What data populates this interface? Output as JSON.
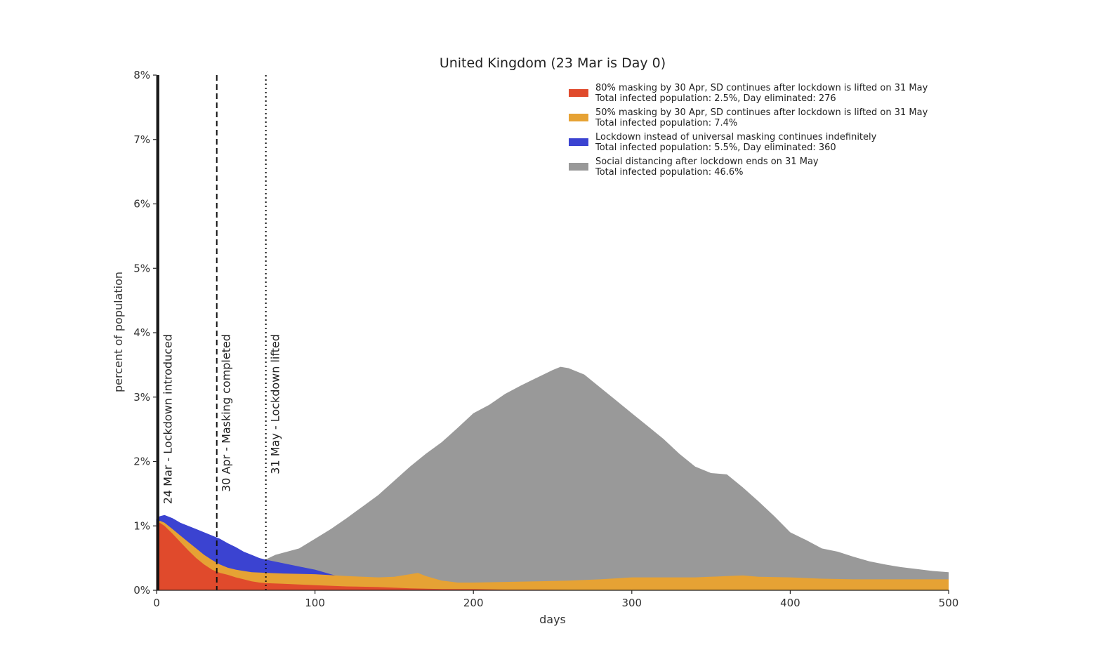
{
  "chart_data": {
    "type": "area",
    "title": "United Kingdom (23 Mar is Day 0)",
    "xlabel": "days",
    "ylabel": "percent of population",
    "xlim": [
      0,
      500
    ],
    "ylim": [
      0,
      8
    ],
    "x_ticks": [
      0,
      100,
      200,
      300,
      400,
      500
    ],
    "x_tick_labels": [
      "0",
      "100",
      "200",
      "300",
      "400",
      "500"
    ],
    "y_ticks": [
      0,
      1,
      2,
      3,
      4,
      5,
      6,
      7,
      8
    ],
    "y_tick_labels": [
      "0%",
      "1%",
      "2%",
      "3%",
      "4%",
      "5%",
      "6%",
      "7%",
      "8%"
    ],
    "grid": false,
    "legend_position": "top-right",
    "vertical_markers": [
      {
        "x": 1,
        "style": "solid",
        "label": "24 Mar - Lockdown introduced"
      },
      {
        "x": 38,
        "style": "dashed",
        "label": "30 Apr - Masking completed"
      },
      {
        "x": 69,
        "style": "dotted",
        "label": "31 May - Lockdown lifted"
      }
    ],
    "series": [
      {
        "name": "Social distancing after lockdown ends on 31 May",
        "legend_line2": "Total infected population: 46.6%",
        "color": "#999999",
        "x": [
          69,
          75,
          90,
          100,
          110,
          120,
          130,
          140,
          150,
          160,
          170,
          180,
          190,
          200,
          210,
          220,
          230,
          240,
          250,
          255,
          260,
          270,
          280,
          290,
          300,
          310,
          320,
          330,
          340,
          350,
          360,
          370,
          380,
          390,
          400,
          410,
          420,
          430,
          440,
          450,
          460,
          470,
          480,
          490,
          500
        ],
        "y": [
          0.48,
          0.55,
          0.65,
          0.8,
          0.95,
          1.12,
          1.3,
          1.48,
          1.7,
          1.92,
          2.12,
          2.3,
          2.52,
          2.75,
          2.88,
          3.05,
          3.18,
          3.3,
          3.42,
          3.47,
          3.45,
          3.35,
          3.15,
          2.95,
          2.75,
          2.55,
          2.35,
          2.12,
          1.92,
          1.82,
          1.8,
          1.6,
          1.38,
          1.15,
          0.9,
          0.78,
          0.65,
          0.6,
          0.52,
          0.45,
          0.4,
          0.36,
          0.33,
          0.3,
          0.28
        ]
      },
      {
        "name": "Lockdown instead of universal masking continues indefinitely",
        "legend_line2": "Total infected population: 5.5%, Day eliminated: 360",
        "color": "#3b43d1",
        "x": [
          0,
          2,
          5,
          10,
          15,
          20,
          25,
          30,
          35,
          40,
          45,
          50,
          55,
          60,
          65,
          70,
          80,
          90,
          100,
          110,
          120,
          130,
          140
        ],
        "y": [
          1.1,
          1.15,
          1.17,
          1.12,
          1.05,
          1.0,
          0.95,
          0.9,
          0.85,
          0.8,
          0.73,
          0.67,
          0.6,
          0.55,
          0.5,
          0.47,
          0.42,
          0.37,
          0.32,
          0.25,
          0.18,
          0.12,
          0.05
        ]
      },
      {
        "name": "50% masking by 30 Apr, SD continues after lockdown is lifted on 31 May",
        "legend_line2": "Total infected population: 7.4%",
        "color": "#e6a234",
        "x": [
          0,
          2,
          5,
          10,
          15,
          20,
          25,
          30,
          35,
          40,
          45,
          50,
          55,
          60,
          70,
          80,
          100,
          120,
          140,
          150,
          160,
          165,
          170,
          180,
          190,
          200,
          220,
          240,
          260,
          280,
          300,
          320,
          340,
          360,
          370,
          380,
          400,
          420,
          440,
          460,
          480,
          500
        ],
        "y": [
          1.0,
          1.08,
          1.05,
          0.95,
          0.85,
          0.75,
          0.65,
          0.55,
          0.47,
          0.4,
          0.35,
          0.32,
          0.3,
          0.28,
          0.27,
          0.26,
          0.25,
          0.22,
          0.2,
          0.21,
          0.25,
          0.27,
          0.22,
          0.15,
          0.12,
          0.12,
          0.13,
          0.14,
          0.15,
          0.17,
          0.2,
          0.2,
          0.2,
          0.22,
          0.23,
          0.21,
          0.2,
          0.18,
          0.17,
          0.17,
          0.17,
          0.17
        ]
      },
      {
        "name": "80% masking by 30 Apr, SD continues after lockdown is lifted on 31 May",
        "legend_line2": "Total infected population: 2.5%, Day eliminated: 276",
        "color": "#e04a2c",
        "x": [
          0,
          2,
          5,
          10,
          15,
          20,
          25,
          30,
          35,
          40,
          45,
          50,
          55,
          60,
          65,
          70,
          80,
          90,
          100,
          120,
          140,
          160,
          180,
          200,
          220,
          240,
          260,
          276
        ],
        "y": [
          1.0,
          1.05,
          1.0,
          0.88,
          0.75,
          0.62,
          0.5,
          0.4,
          0.32,
          0.27,
          0.24,
          0.2,
          0.17,
          0.14,
          0.12,
          0.11,
          0.1,
          0.09,
          0.08,
          0.06,
          0.05,
          0.03,
          0.02,
          0.02,
          0.01,
          0.01,
          0.005,
          0.0
        ]
      }
    ],
    "legend_order": [
      3,
      2,
      1,
      0
    ]
  }
}
